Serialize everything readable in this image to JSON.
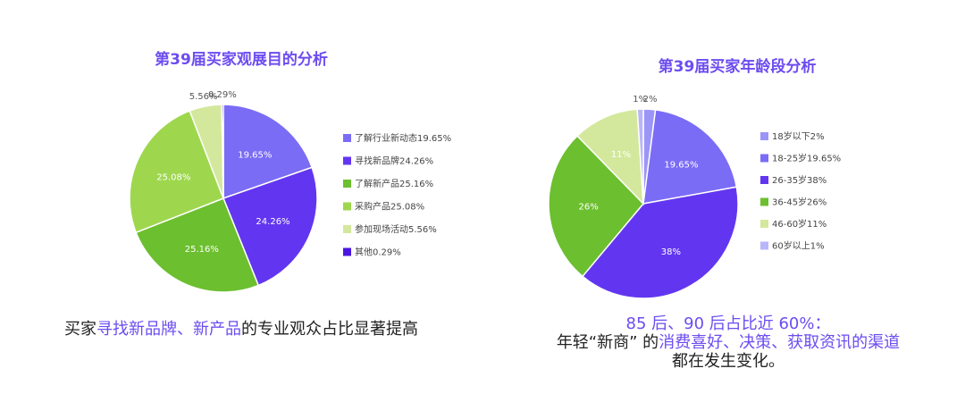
{
  "left": {
    "title": "第39届买家观展目的分析",
    "caption": {
      "p1": "买家",
      "hl": "寻找新品牌、新产品",
      "p2": "的专业观众占比显著提高"
    }
  },
  "right": {
    "title": "第39届买家年龄段分析",
    "caption": {
      "line1": "85 后、90 后占比近 60%：",
      "line2_pre": "年轻“新商” 的",
      "line2_hl": "消费喜好、决策、获取资讯的渠道",
      "line3": "都在发生变化。"
    }
  },
  "chart_data": [
    {
      "type": "pie",
      "title": "第39届买家观展目的分析",
      "slices": [
        {
          "label": "了解行业新动态",
          "value": 19.65,
          "value_label": "19.65%",
          "legend": "了解行业新动态19.65%",
          "color": "#7B6CF6"
        },
        {
          "label": "寻找新品牌",
          "value": 24.26,
          "value_label": "24.26%",
          "legend": "寻找新品牌24.26%",
          "color": "#6236F0"
        },
        {
          "label": "了解新产品",
          "value": 25.16,
          "value_label": "25.16%",
          "legend": "了解新产品25.16%",
          "color": "#6CBF2F"
        },
        {
          "label": "采购产品",
          "value": 25.08,
          "value_label": "25.08%",
          "legend": "采购产品25.08%",
          "color": "#9ED74E"
        },
        {
          "label": "参加现场活动",
          "value": 5.56,
          "value_label": "5.56%",
          "legend": "参加现场活动5.56%",
          "color": "#D3E89C"
        },
        {
          "label": "其他",
          "value": 0.29,
          "value_label": "0.29%",
          "legend": "其他0.29%",
          "color": "#4A16E0"
        }
      ]
    },
    {
      "type": "pie",
      "title": "第39届买家年龄段分析",
      "slices": [
        {
          "label": "18岁以下",
          "value": 2,
          "value_label": "2%",
          "legend": "18岁以下2%",
          "color": "#9C95F8"
        },
        {
          "label": "18-25岁",
          "value": 19.65,
          "value_label": "19.65%",
          "legend": "18-25岁19.65%",
          "color": "#7B6CF6"
        },
        {
          "label": "26-35岁",
          "value": 38,
          "value_label": "38%",
          "legend": "26-35岁38%",
          "color": "#6236F0"
        },
        {
          "label": "36-45岁",
          "value": 26,
          "value_label": "26%",
          "legend": "36-45岁26%",
          "color": "#6CBF2F"
        },
        {
          "label": "46-60岁",
          "value": 11,
          "value_label": "11%",
          "legend": "46-60岁11%",
          "color": "#D3E89C"
        },
        {
          "label": "60岁以上",
          "value": 1,
          "value_label": "1%",
          "legend": "60岁以上1%",
          "color": "#B9B5FA"
        }
      ]
    }
  ]
}
